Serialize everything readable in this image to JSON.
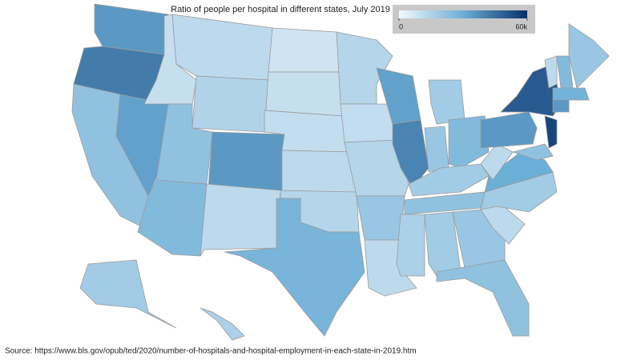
{
  "chart_data": {
    "type": "choropleth",
    "title": "Ratio of people per hospital in different states, July 2019",
    "values": [
      35000,
      42000,
      22000,
      33000,
      10000,
      12000,
      15000,
      22000,
      25000,
      35000,
      12000,
      8000,
      10000,
      11000,
      12000,
      14000,
      27000,
      14000,
      11000,
      14000,
      20000,
      12000,
      33000,
      40000,
      18000,
      20000,
      25000,
      18000,
      22000,
      16000,
      18000,
      20000,
      22000,
      12000,
      18000,
      30000,
      12000,
      35000,
      50000,
      55000,
      22000,
      12000,
      25000,
      20000,
      28000,
      35000,
      18000,
      16000
    ],
    "colorbar": {
      "lim": [
        0,
        60000
      ],
      "ticks": [
        0,
        {
          "value": 60000,
          "label": "60k"
        }
      ],
      "colors": [
        "#f4f8fc",
        "#6baed6",
        "#08306b"
      ]
    },
    "source": "Source: https://www.bls.gov/opub/ted/2020/number-of-hospitals-and-hospital-employment-in-each-state-in-2019.htm"
  }
}
